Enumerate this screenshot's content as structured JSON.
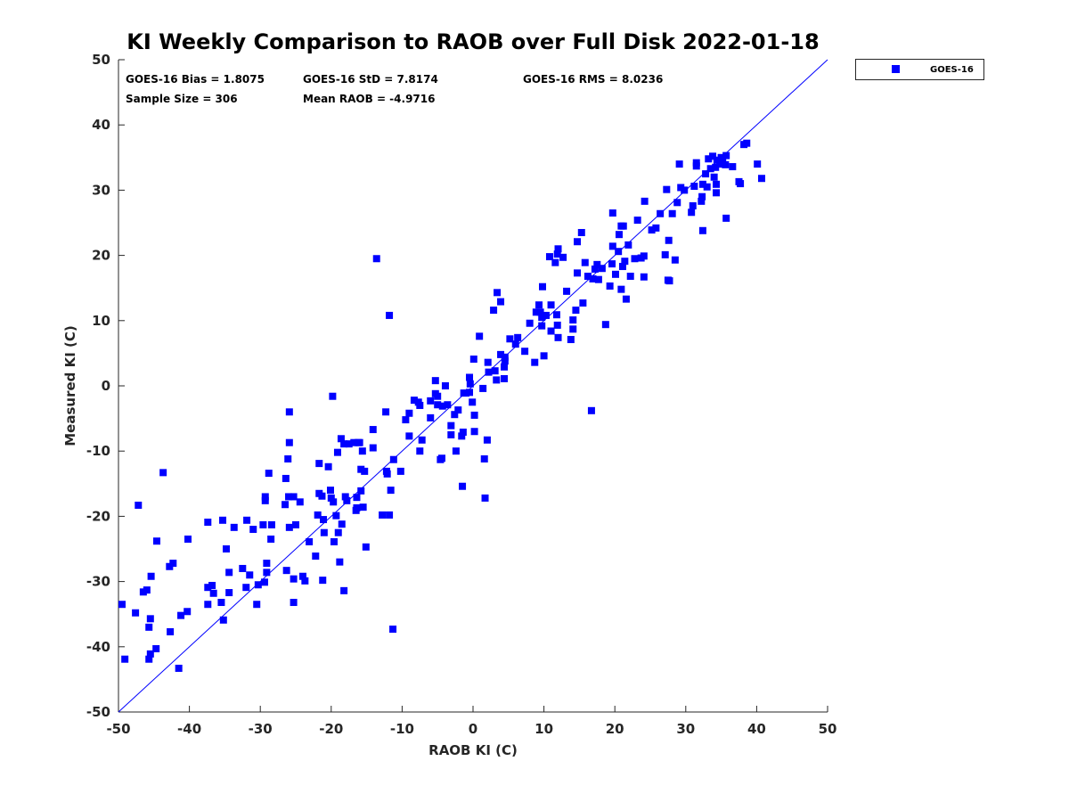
{
  "chart_data": {
    "type": "scatter",
    "title": "KI Weekly Comparison to RAOB over Full Disk 2022-01-18",
    "xlabel": "RAOB KI (C)",
    "ylabel": "Measured KI (C)",
    "xlim": [
      -50,
      50
    ],
    "ylim": [
      -50,
      50
    ],
    "xticks": [
      -50,
      -40,
      -30,
      -20,
      -10,
      0,
      10,
      20,
      30,
      40,
      50
    ],
    "yticks": [
      -50,
      -40,
      -30,
      -20,
      -10,
      0,
      10,
      20,
      30,
      40,
      50
    ],
    "grid": false,
    "legend": {
      "placement": "outside-top-right",
      "entries": [
        "GOES-16"
      ]
    },
    "reference_line": {
      "type": "1:1",
      "from": [
        -50,
        -50
      ],
      "to": [
        50,
        50
      ]
    },
    "stats": [
      "GOES-16 Bias = 1.8075",
      "GOES-16 StD = 7.8174",
      "GOES-16 RMS = 8.0236",
      "Sample Size = 306",
      "Mean RAOB = -4.9716"
    ],
    "colors": {
      "series": "#0000ff",
      "line": "#0000ff"
    },
    "series": [
      {
        "name": "GOES-16",
        "points": [
          [
            -49.5,
            -33.5
          ],
          [
            -49.1,
            -41.9
          ],
          [
            -47.6,
            -34.8
          ],
          [
            -47.2,
            -18.3
          ],
          [
            -46.5,
            -31.6
          ],
          [
            -46,
            -31.3
          ],
          [
            -45.7,
            -37
          ],
          [
            -45.7,
            -41.9
          ],
          [
            -45.5,
            -41.1
          ],
          [
            -45.5,
            -35.7
          ],
          [
            -45.4,
            -29.2
          ],
          [
            -44.7,
            -40.3
          ],
          [
            -44.6,
            -23.8
          ],
          [
            -43.7,
            -13.3
          ],
          [
            -42.8,
            -27.7
          ],
          [
            -42.3,
            -27.2
          ],
          [
            -42.7,
            -37.7
          ],
          [
            -41.5,
            -43.3
          ],
          [
            -41.2,
            -35.2
          ],
          [
            -40.3,
            -34.6
          ],
          [
            -40.2,
            -23.5
          ],
          [
            -37.4,
            -20.9
          ],
          [
            -37.4,
            -30.9
          ],
          [
            -37.4,
            -33.5
          ],
          [
            -36.8,
            -30.6
          ],
          [
            -36.6,
            -31.8
          ],
          [
            -35.5,
            -33.2
          ],
          [
            -35.3,
            -20.6
          ],
          [
            -35.2,
            -35.9
          ],
          [
            -34.8,
            -25
          ],
          [
            -34.4,
            -28.6
          ],
          [
            -34.4,
            -31.7
          ],
          [
            -33.7,
            -21.7
          ],
          [
            -32.5,
            -28
          ],
          [
            -31.9,
            -20.6
          ],
          [
            -32,
            -30.9
          ],
          [
            -31.5,
            -29
          ],
          [
            -31,
            -22
          ],
          [
            -30.5,
            -33.5
          ],
          [
            -30.3,
            -30.5
          ],
          [
            -29.6,
            -21.3
          ],
          [
            -29.4,
            -30.1
          ],
          [
            -29.3,
            -17
          ],
          [
            -29.3,
            -17.6
          ],
          [
            -29.1,
            -27.2
          ],
          [
            -29.1,
            -28.6
          ],
          [
            -28.8,
            -13.4
          ],
          [
            -28.5,
            -23.5
          ],
          [
            -28.4,
            -21.3
          ],
          [
            -26.5,
            -18.2
          ],
          [
            -26.4,
            -14.2
          ],
          [
            -26.3,
            -28.3
          ],
          [
            -26.1,
            -11.2
          ],
          [
            -25.9,
            -8.7
          ],
          [
            -25.9,
            -4
          ],
          [
            -26,
            -17
          ],
          [
            -25.9,
            -21.7
          ],
          [
            -25.3,
            -17
          ],
          [
            -25.3,
            -29.6
          ],
          [
            -25.3,
            -33.2
          ],
          [
            -25,
            -21.3
          ],
          [
            -24.4,
            -17.8
          ],
          [
            -24,
            -29.2
          ],
          [
            -23.7,
            -29.9
          ],
          [
            -23.1,
            -23.9
          ],
          [
            -22.2,
            -26.1
          ],
          [
            -21.9,
            -19.8
          ],
          [
            -21.7,
            -11.9
          ],
          [
            -21.7,
            -16.5
          ],
          [
            -21.3,
            -16.9
          ],
          [
            -21.2,
            -29.8
          ],
          [
            -21,
            -22.5
          ],
          [
            -21.1,
            -20.5
          ],
          [
            -20.4,
            -12.4
          ],
          [
            -20.1,
            -16
          ],
          [
            -20,
            -17.2
          ],
          [
            -19.8,
            -1.6
          ],
          [
            -19.7,
            -17.8
          ],
          [
            -19.6,
            -23.9
          ],
          [
            -19.3,
            -19.9
          ],
          [
            -19.1,
            -10.2
          ],
          [
            -19,
            -22.5
          ],
          [
            -18.8,
            -27
          ],
          [
            -18.6,
            -8.1
          ],
          [
            -18.5,
            -21.2
          ],
          [
            -18.2,
            -8.9
          ],
          [
            -18.2,
            -31.4
          ],
          [
            -18,
            -17
          ],
          [
            -17.8,
            -17.6
          ],
          [
            -17.5,
            -8.9
          ],
          [
            -16.8,
            -8.7
          ],
          [
            -16.5,
            -19.1
          ],
          [
            -16.4,
            -17.1
          ],
          [
            -16.4,
            -18.7
          ],
          [
            -16.2,
            -8.7
          ],
          [
            -16,
            -8.7
          ],
          [
            -15.8,
            -12.8
          ],
          [
            -15.8,
            -16.1
          ],
          [
            -15.6,
            -10
          ],
          [
            -15.5,
            -18.6
          ],
          [
            -15.3,
            -13.1
          ],
          [
            -15.1,
            -24.7
          ],
          [
            -14.1,
            -6.7
          ],
          [
            -14.1,
            -9.5
          ],
          [
            -13.6,
            19.5
          ],
          [
            -12.8,
            -19.8
          ],
          [
            -12.3,
            -4
          ],
          [
            -12.2,
            -13.1
          ],
          [
            -12.1,
            -13.5
          ],
          [
            -11.8,
            10.8
          ],
          [
            -11.8,
            -19.8
          ],
          [
            -11.6,
            -16
          ],
          [
            -11.3,
            -37.3
          ],
          [
            -11.2,
            -11.3
          ],
          [
            -10.2,
            -13.1
          ],
          [
            -9.5,
            -5.2
          ],
          [
            -9,
            -7.7
          ],
          [
            -9,
            -4.2
          ],
          [
            -8.3,
            -2.2
          ],
          [
            -7.7,
            -2.5
          ],
          [
            -7.5,
            -3
          ],
          [
            -7.5,
            -10
          ],
          [
            -7.2,
            -8.3
          ],
          [
            -6,
            -2.3
          ],
          [
            -6,
            -4.9
          ],
          [
            -5.3,
            0.8
          ],
          [
            -5.3,
            -1.2
          ],
          [
            -5,
            -1.6
          ],
          [
            -5,
            -2.9
          ],
          [
            -4.6,
            -11.3
          ],
          [
            -4.4,
            -11.1
          ],
          [
            -4.3,
            -3.1
          ],
          [
            -3.9,
            0
          ],
          [
            -3.6,
            -2.9
          ],
          [
            -3.1,
            -6.1
          ],
          [
            -3.1,
            -7.5
          ],
          [
            -2.6,
            -4.4
          ],
          [
            -2.4,
            -10
          ],
          [
            -2.1,
            -3.7
          ],
          [
            -1.6,
            -7.7
          ],
          [
            -1.5,
            -15.4
          ],
          [
            -1.4,
            -7.1
          ],
          [
            -1.3,
            -1.1
          ],
          [
            -1,
            -1.1
          ],
          [
            -0.5,
            -1
          ],
          [
            -0.5,
            1.3
          ],
          [
            -0.4,
            0.3
          ],
          [
            -0.1,
            -2.5
          ],
          [
            0.1,
            4.1
          ],
          [
            0.2,
            -4.5
          ],
          [
            0.2,
            -7
          ],
          [
            0.9,
            7.6
          ],
          [
            1.4,
            -0.4
          ],
          [
            1.6,
            -11.2
          ],
          [
            1.7,
            -17.2
          ],
          [
            2,
            -8.3
          ],
          [
            2.1,
            3.6
          ],
          [
            2.2,
            2.1
          ],
          [
            2.9,
            11.6
          ],
          [
            3.1,
            2.3
          ],
          [
            3.3,
            0.9
          ],
          [
            3.4,
            14.3
          ],
          [
            3.9,
            12.9
          ],
          [
            3.9,
            4.8
          ],
          [
            4.4,
            1.1
          ],
          [
            4.4,
            2.9
          ],
          [
            4.5,
            4.4
          ],
          [
            4.5,
            3.8
          ],
          [
            5.2,
            7.2
          ],
          [
            6,
            6.4
          ],
          [
            6.3,
            7.4
          ],
          [
            7.3,
            5.3
          ],
          [
            8,
            9.6
          ],
          [
            8.7,
            3.6
          ],
          [
            8.9,
            11.3
          ],
          [
            9.3,
            12.4
          ],
          [
            9.5,
            11.3
          ],
          [
            9.7,
            10.5
          ],
          [
            9.7,
            9.2
          ],
          [
            9.8,
            15.2
          ],
          [
            10,
            4.6
          ],
          [
            10.3,
            10.8
          ],
          [
            10.8,
            19.8
          ],
          [
            11,
            12.4
          ],
          [
            11,
            8.4
          ],
          [
            11.6,
            18.9
          ],
          [
            11.8,
            10.9
          ],
          [
            11.9,
            20.2
          ],
          [
            11.9,
            9.3
          ],
          [
            12,
            7.4
          ],
          [
            12,
            21
          ],
          [
            12.7,
            19.7
          ],
          [
            13.2,
            14.5
          ],
          [
            13.8,
            7.1
          ],
          [
            14.1,
            10.1
          ],
          [
            14.1,
            8.7
          ],
          [
            14.5,
            11.6
          ],
          [
            14.7,
            17.3
          ],
          [
            14.7,
            22.1
          ],
          [
            15.3,
            23.5
          ],
          [
            15.5,
            12.7
          ],
          [
            15.8,
            18.9
          ],
          [
            16.2,
            16.8
          ],
          [
            16.7,
            -3.8
          ],
          [
            16.9,
            16.4
          ],
          [
            17.2,
            17.9
          ],
          [
            17.5,
            18.6
          ],
          [
            17.7,
            16.3
          ],
          [
            18.2,
            18
          ],
          [
            18.7,
            9.4
          ],
          [
            19.3,
            15.3
          ],
          [
            19.6,
            18.7
          ],
          [
            19.7,
            26.5
          ],
          [
            19.7,
            21.4
          ],
          [
            20.1,
            17.1
          ],
          [
            20.5,
            20.6
          ],
          [
            20.6,
            23.2
          ],
          [
            20.9,
            24.5
          ],
          [
            20.9,
            14.8
          ],
          [
            21.1,
            18.3
          ],
          [
            21.2,
            24.5
          ],
          [
            21.4,
            19.1
          ],
          [
            21.6,
            13.3
          ],
          [
            21.9,
            21.6
          ],
          [
            22.2,
            16.8
          ],
          [
            22.8,
            19.5
          ],
          [
            23.2,
            25.4
          ],
          [
            23.7,
            19.6
          ],
          [
            24.1,
            16.7
          ],
          [
            24.1,
            19.9
          ],
          [
            24.2,
            28.3
          ],
          [
            25.2,
            23.9
          ],
          [
            25.8,
            24.2
          ],
          [
            26.4,
            26.4
          ],
          [
            27.1,
            20.1
          ],
          [
            27.3,
            30.1
          ],
          [
            27.5,
            16.2
          ],
          [
            27.6,
            22.3
          ],
          [
            27.7,
            16.1
          ],
          [
            28.1,
            26.4
          ],
          [
            28.5,
            19.3
          ],
          [
            28.8,
            28.1
          ],
          [
            29.1,
            34
          ],
          [
            29.3,
            30.4
          ],
          [
            29.8,
            30
          ],
          [
            30.8,
            26.6
          ],
          [
            31,
            27.6
          ],
          [
            31.2,
            30.6
          ],
          [
            31.5,
            34.2
          ],
          [
            31.5,
            33.7
          ],
          [
            32.2,
            28.3
          ],
          [
            32.3,
            29
          ],
          [
            32.4,
            23.8
          ],
          [
            32.4,
            30.9
          ],
          [
            32.8,
            32.5
          ],
          [
            33,
            30.5
          ],
          [
            33.2,
            34.8
          ],
          [
            33.5,
            33.3
          ],
          [
            33.8,
            35.2
          ],
          [
            34,
            32
          ],
          [
            34.2,
            33.5
          ],
          [
            34.3,
            30.9
          ],
          [
            34.3,
            29.6
          ],
          [
            34.4,
            34.6
          ],
          [
            34.8,
            34
          ],
          [
            35,
            35
          ],
          [
            35.2,
            34.7
          ],
          [
            35.6,
            33.9
          ],
          [
            35.7,
            35.3
          ],
          [
            35.7,
            25.7
          ],
          [
            36.6,
            33.6
          ],
          [
            37.5,
            31.3
          ],
          [
            37.7,
            31
          ],
          [
            38.2,
            37
          ],
          [
            38.6,
            37.2
          ],
          [
            40.1,
            34
          ],
          [
            40.7,
            31.8
          ]
        ]
      }
    ]
  }
}
